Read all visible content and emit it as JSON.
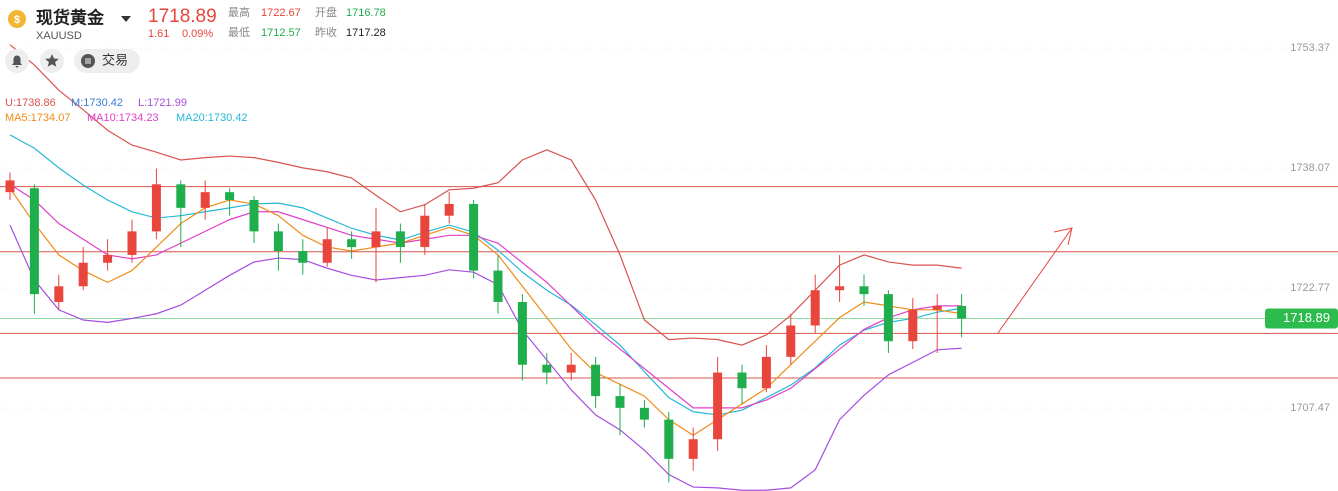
{
  "header": {
    "name": "现货黄金",
    "symbol": "XAUUSD",
    "price": 1718.89,
    "change": 1.61,
    "change_pct": "0.09%",
    "high_label": "最高",
    "high": 1722.67,
    "open_label": "开盘",
    "open": 1716.78,
    "low_label": "最低",
    "low": 1712.57,
    "prev_label": "昨收",
    "prev_close": 1717.28,
    "trade": "交易"
  },
  "indicators": {
    "u": "U:1738.86",
    "m": "M:1730.42",
    "l": "L:1721.99",
    "ma5": "MA5:1734.07",
    "ma10": "MA10:1734.23",
    "ma20": "MA20:1730.42"
  },
  "chart_data": {
    "type": "candlestick",
    "ylim": [
      1696.9,
      1759.5
    ],
    "yticks": [
      1753.37,
      1738.07,
      1722.77,
      1707.47
    ],
    "up_color": "#e8453c",
    "down_color": "#1fae4b",
    "open": [
      1735,
      1735.5,
      1721,
      1723,
      1726,
      1727,
      1730,
      1736,
      1733,
      1735,
      1734,
      1730,
      1727.5,
      1726,
      1729,
      1728,
      1730,
      1728,
      1732,
      1733.5,
      1725,
      1721,
      1713,
      1712,
      1713,
      1709,
      1707.5,
      1706,
      1701,
      1703.5,
      1712,
      1710,
      1714,
      1718,
      1722.5,
      1723,
      1722,
      1716,
      1720,
      1720.5
    ],
    "high": [
      1737.5,
      1736,
      1724.5,
      1728,
      1729,
      1731.5,
      1738,
      1736.5,
      1736.5,
      1735.5,
      1734.5,
      1731,
      1729,
      1730.5,
      1730,
      1733,
      1731,
      1733.5,
      1735,
      1734,
      1727,
      1722,
      1714.5,
      1714.5,
      1714,
      1710.5,
      1708.5,
      1707,
      1705,
      1714,
      1713,
      1715.5,
      1719.5,
      1724.5,
      1727,
      1724.5,
      1722.5,
      1721.5,
      1722,
      1722
    ],
    "low": [
      1734,
      1719.5,
      1720,
      1722.5,
      1725,
      1726,
      1729,
      1728,
      1731.5,
      1732,
      1728.5,
      1725,
      1724.5,
      1725.5,
      1726.5,
      1723.5,
      1726,
      1727,
      1731,
      1724,
      1719.5,
      1711,
      1710.5,
      1711,
      1707.5,
      1704,
      1705,
      1698,
      1699.5,
      1702,
      1708,
      1709.5,
      1713,
      1717,
      1721,
      1720.5,
      1714.5,
      1715,
      1714.5,
      1716.5
    ],
    "close": [
      1736.5,
      1722,
      1723,
      1726,
      1727,
      1730,
      1736,
      1733,
      1735,
      1734,
      1730,
      1727.5,
      1726,
      1729,
      1728,
      1730,
      1728,
      1732,
      1733.5,
      1725,
      1721,
      1713,
      1712,
      1713,
      1709,
      1707.5,
      1706,
      1701,
      1703.5,
      1712,
      1710,
      1714,
      1718,
      1722.5,
      1723,
      1722,
      1716,
      1720,
      1720.5,
      1718.89
    ],
    "series": [
      {
        "name": "U",
        "color": "#d9534f",
        "values": [
          1753.8,
          1751.2,
          1748,
          1745.5,
          1742.9,
          1741,
          1740.1,
          1739.1,
          1739.4,
          1739.6,
          1739.4,
          1738.8,
          1738.1,
          1737.6,
          1736.8,
          1734.6,
          1732.5,
          1733.4,
          1735.3,
          1735.5,
          1736.2,
          1739.1,
          1740.4,
          1739.1,
          1734,
          1727,
          1718.7,
          1716.2,
          1716.4,
          1716.2,
          1715.5,
          1716.8,
          1719.3,
          1722.5,
          1725.7,
          1727,
          1726.1,
          1725.7,
          1725.7,
          1725.3
        ]
      },
      {
        "name": "L",
        "color": "#a64ee0",
        "values": [
          1730.8,
          1723.8,
          1720,
          1718.7,
          1718.4,
          1718.9,
          1719.5,
          1720.6,
          1722.5,
          1724.4,
          1726.1,
          1726.6,
          1726.4,
          1725.3,
          1724.4,
          1723.8,
          1724.1,
          1724.4,
          1725.1,
          1724.8,
          1723.2,
          1717.4,
          1713.6,
          1709.8,
          1706.6,
          1704.7,
          1702.1,
          1699,
          1697.4,
          1697.3,
          1697,
          1697,
          1697.3,
          1699.6,
          1706,
          1709.1,
          1711.7,
          1713.3,
          1714.9,
          1715.1
        ]
      },
      {
        "name": "MA20",
        "color": "#26b8d8",
        "values": [
          1742.3,
          1740.6,
          1738.1,
          1735.9,
          1734,
          1732.5,
          1731.7,
          1732,
          1732.5,
          1733,
          1733.5,
          1733.6,
          1733,
          1731.7,
          1730.4,
          1729.5,
          1728.9,
          1729.9,
          1730.8,
          1729.9,
          1727.6,
          1724.8,
          1722.5,
          1720.6,
          1718.1,
          1715.5,
          1712.1,
          1708.8,
          1707,
          1706.6,
          1707.2,
          1708.8,
          1710.4,
          1712.6,
          1715.5,
          1717.4,
          1718.4,
          1718.9,
          1719.7,
          1720.2
        ]
      },
      {
        "name": "MA10",
        "color": "#e040c8",
        "values": [
          1736,
          1734,
          1731,
          1729,
          1727,
          1726.5,
          1727,
          1728.5,
          1730,
          1731.5,
          1732.5,
          1732.5,
          1731.5,
          1730.5,
          1729.5,
          1729,
          1728.5,
          1729,
          1729.5,
          1729.5,
          1728.5,
          1726,
          1723.5,
          1720.5,
          1717.5,
          1715,
          1712.5,
          1710,
          1707.5,
          1707.5,
          1707.5,
          1708.5,
          1710,
          1712.5,
          1715,
          1717.5,
          1719,
          1720,
          1720.5,
          1720.5
        ]
      },
      {
        "name": "MA5",
        "color": "#f08c1a",
        "values": [
          1735.5,
          1731,
          1727,
          1725,
          1723.5,
          1725,
          1728,
          1731,
          1733,
          1734,
          1733.5,
          1732,
          1729.5,
          1728,
          1727.5,
          1728,
          1728.5,
          1729.5,
          1730.5,
          1729.5,
          1727,
          1723,
          1719,
          1715,
          1712,
          1710.5,
          1709,
          1706,
          1704,
          1706,
          1708,
          1710,
          1713,
          1716,
          1719,
          1721,
          1720.5,
          1720,
          1720,
          1719.5
        ]
      }
    ],
    "levels": [
      1735.7,
      1727.4,
      1717.0,
      1711.3
    ],
    "level_color": "#d9534f",
    "last_price": 1718.89,
    "last_color": "#2dbb4e"
  }
}
